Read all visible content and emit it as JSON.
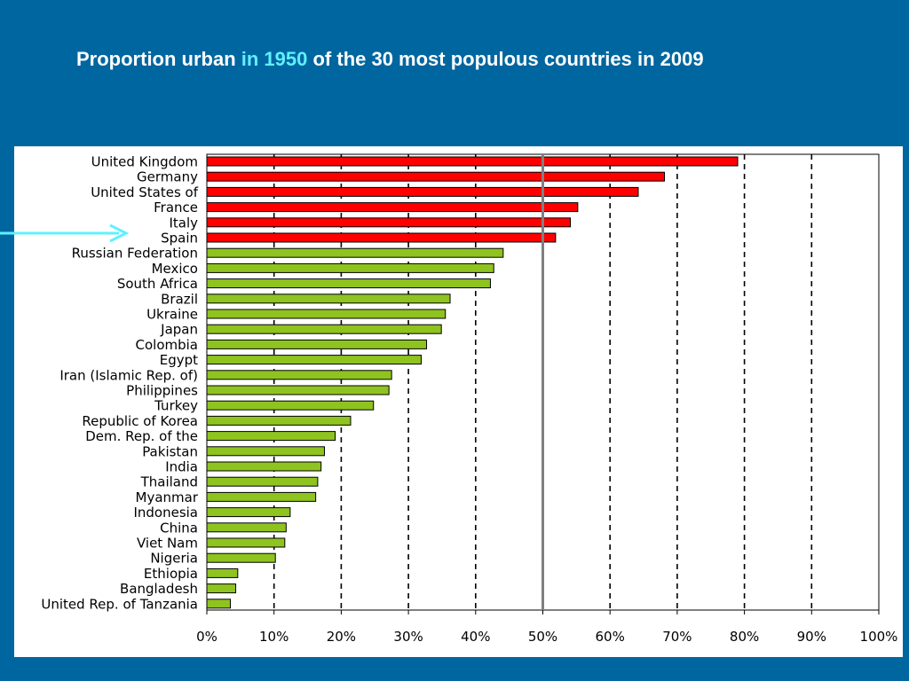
{
  "title": {
    "part1": "Proportion urban ",
    "highlight": "in 1950",
    "part2": " of the 30 most populous countries in 2009"
  },
  "colors": {
    "background": "#0066a0",
    "above_threshold_bar": "#ff0000",
    "below_threshold_bar": "#8fc31f",
    "reference_line": "#808080",
    "arrow": "#5ff0ff",
    "title_highlight": "#5ff0ff"
  },
  "indicator": {
    "icon": "arrow-right-icon",
    "points_to": "Spain"
  },
  "chart_data": {
    "type": "bar",
    "orientation": "horizontal",
    "title": "Proportion urban in 1950 of the 30 most populous countries in 2009",
    "xlim": [
      0,
      100
    ],
    "x_ticks": [
      "0%",
      "10%",
      "20%",
      "30%",
      "40%",
      "50%",
      "60%",
      "70%",
      "80%",
      "90%",
      "100%"
    ],
    "grid": "vertical dashed",
    "reference_value": 50,
    "categories": [
      "United Kingdom",
      "Germany",
      "United States of",
      "France",
      "Italy",
      "Spain",
      "Russian Federation",
      "Mexico",
      "South Africa",
      "Brazil",
      "Ukraine",
      "Japan",
      "Colombia",
      "Egypt",
      "Iran (Islamic Rep. of)",
      "Philippines",
      "Turkey",
      "Republic of Korea",
      "Dem. Rep. of the",
      "Pakistan",
      "India",
      "Thailand",
      "Myanmar",
      "Indonesia",
      "China",
      "Viet Nam",
      "Nigeria",
      "Ethiopia",
      "Bangladesh",
      "United Rep. of Tanzania"
    ],
    "values": [
      79.0,
      68.1,
      64.2,
      55.2,
      54.1,
      51.9,
      44.1,
      42.7,
      42.2,
      36.2,
      35.5,
      34.9,
      32.7,
      31.9,
      27.5,
      27.1,
      24.8,
      21.4,
      19.1,
      17.5,
      17.0,
      16.5,
      16.2,
      12.4,
      11.8,
      11.6,
      10.2,
      4.6,
      4.3,
      3.5
    ]
  }
}
